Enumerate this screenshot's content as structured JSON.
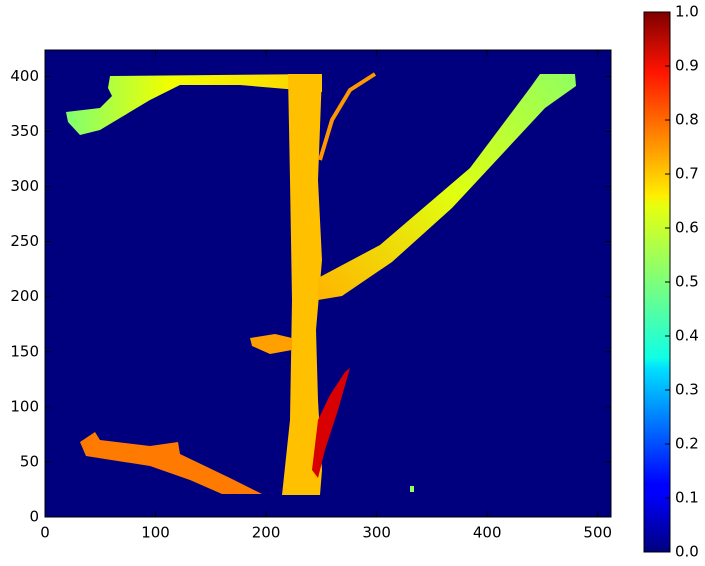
{
  "chart_data": {
    "type": "image",
    "xlim": [
      0,
      512
    ],
    "xticks": [
      0,
      100,
      200,
      300,
      400,
      500
    ],
    "ylim": [
      0,
      424
    ],
    "yticks": [
      0,
      50,
      100,
      150,
      200,
      250,
      300,
      350,
      400
    ],
    "colorbar": {
      "colormap": "jet",
      "clim": [
        0,
        1
      ],
      "ticks": [
        {
          "value": 0,
          "label": "0.0"
        },
        0.1,
        0.2,
        0.3,
        0.4,
        0.5,
        0.6,
        0.7,
        0.8,
        0.9,
        {
          "value": 1,
          "label": "1.0"
        }
      ]
    }
  }
}
